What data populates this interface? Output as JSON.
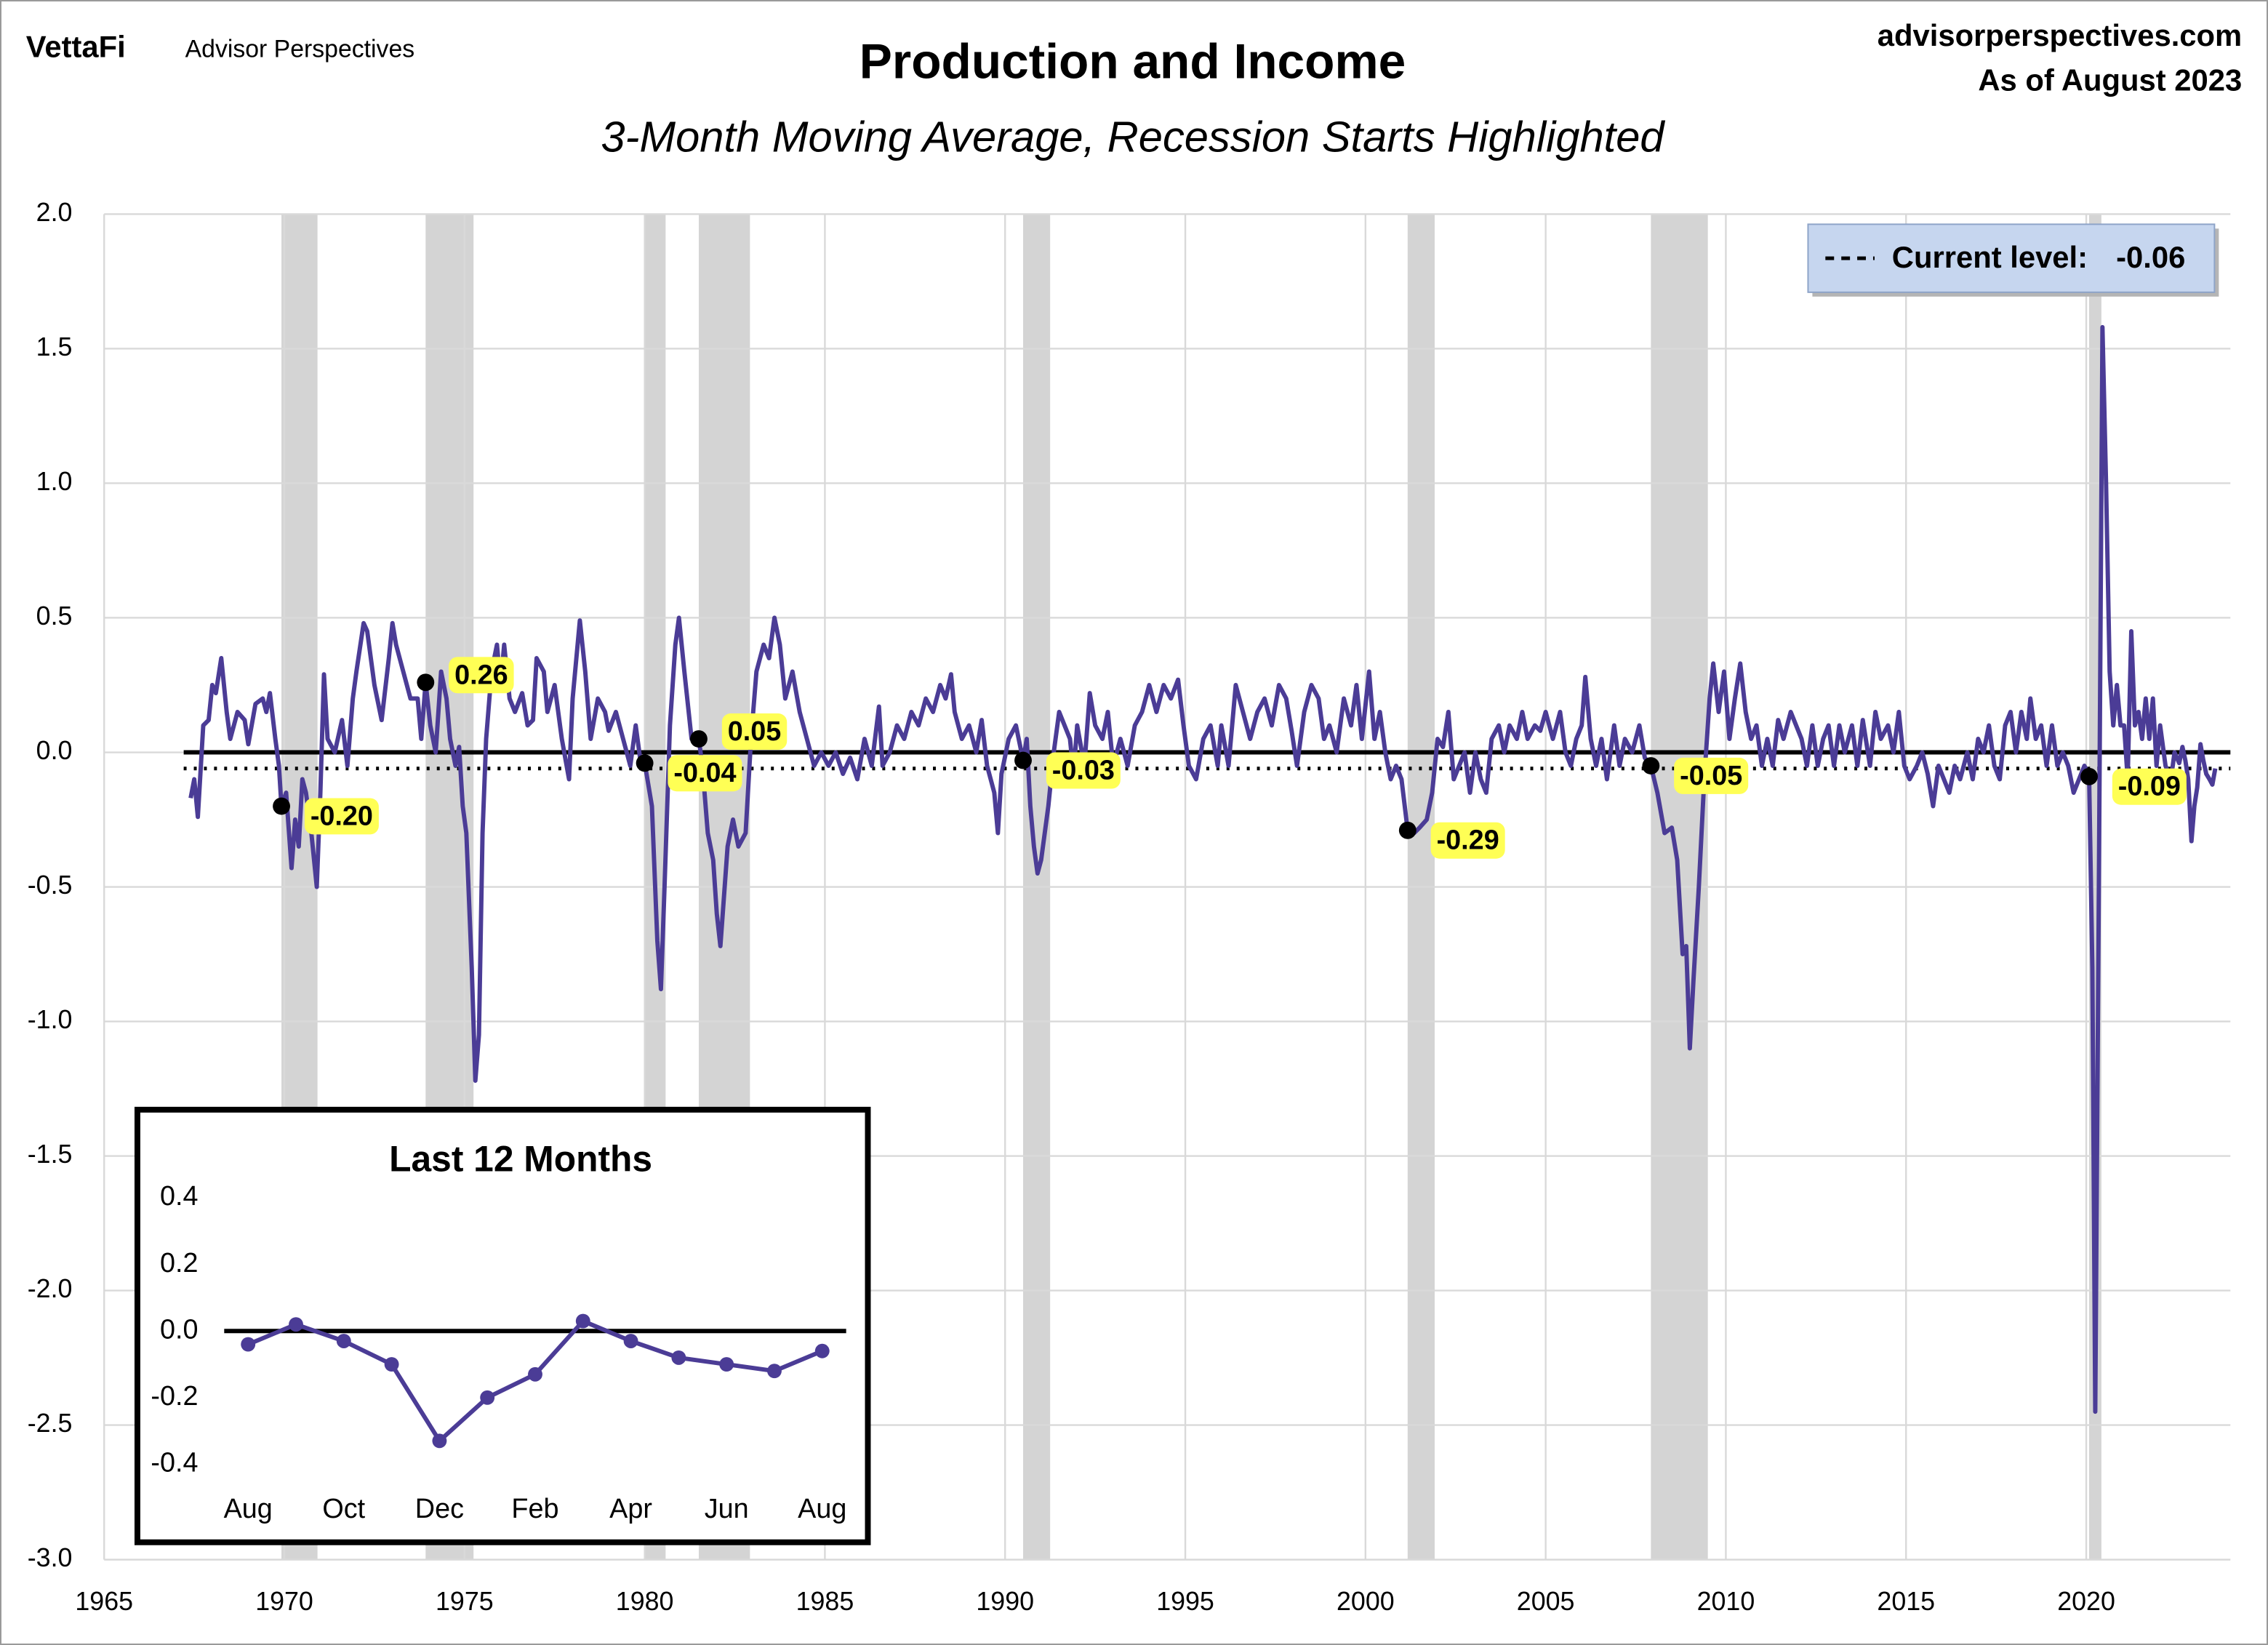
{
  "header": {
    "logo": "VettaFi",
    "brand": "Advisor Perspectives",
    "site": "advisorperspectives.com",
    "date": "As of August 2023"
  },
  "chart_data": [
    {
      "type": "line",
      "title": "Production and Income",
      "subtitle": "3-Month Moving Average, Recession Starts Highlighted",
      "color": "#4b3c96",
      "grid": true,
      "zero_line": true,
      "negative_tick_color": "#ff0000",
      "xlim": [
        1965,
        2024
      ],
      "xticks": [
        1965,
        1970,
        1975,
        1980,
        1985,
        1990,
        1995,
        2000,
        2005,
        2010,
        2015,
        2020
      ],
      "ylim": [
        -3,
        2
      ],
      "yticks": [
        {
          "value": -3,
          "label": "-3.0"
        },
        -2.5,
        {
          "value": -2,
          "label": "-2.0"
        },
        -1.5,
        {
          "value": -1,
          "label": "-1.0"
        },
        -0.5,
        {
          "value": 0,
          "label": "0.0"
        },
        0.5,
        {
          "value": 1,
          "label": "1.0"
        },
        1.5,
        {
          "value": 2,
          "label": "2.0"
        }
      ],
      "recession_color": "#d4d4d4",
      "recessions": [
        [
          1969.92,
          1970.92
        ],
        [
          1973.92,
          1975.25
        ],
        [
          1980.0,
          1980.58
        ],
        [
          1981.5,
          1982.92
        ],
        [
          1990.5,
          1991.25
        ],
        [
          2001.17,
          2001.92
        ],
        [
          2007.92,
          2009.5
        ],
        [
          2020.08,
          2020.42
        ]
      ],
      "current_level": {
        "label": "Current level:",
        "value": -0.06,
        "legend_position": "upper right"
      },
      "markers": {
        "x": [
          1969.92,
          1973.92,
          1980.0,
          1981.5,
          1990.5,
          2001.17,
          2007.92,
          2020.08
        ],
        "values": [
          -0.2,
          0.26,
          -0.04,
          0.05,
          -0.03,
          -0.29,
          -0.05,
          -0.09
        ],
        "value_labels": [
          "-0.20",
          "0.26",
          "-0.04",
          "0.05",
          "-0.03",
          "-0.29",
          "-0.05",
          "-0.09"
        ],
        "label_background": "#ffff55"
      },
      "x": [
        1967.4,
        1967.5,
        1967.6,
        1967.75,
        1967.9,
        1968.0,
        1968.1,
        1968.25,
        1968.4,
        1968.5,
        1968.7,
        1968.9,
        1969.0,
        1969.2,
        1969.4,
        1969.5,
        1969.6,
        1969.75,
        1969.85,
        1969.92,
        1970.05,
        1970.2,
        1970.3,
        1970.4,
        1970.5,
        1970.6,
        1970.75,
        1970.9,
        1971.0,
        1971.1,
        1971.2,
        1971.4,
        1971.6,
        1971.75,
        1971.9,
        1972.0,
        1972.2,
        1972.3,
        1972.5,
        1972.7,
        1972.9,
        1973.0,
        1973.1,
        1973.3,
        1973.5,
        1973.7,
        1973.8,
        1973.92,
        1974.05,
        1974.2,
        1974.35,
        1974.5,
        1974.6,
        1974.75,
        1974.85,
        1974.95,
        1975.05,
        1975.2,
        1975.3,
        1975.4,
        1975.5,
        1975.6,
        1975.75,
        1975.9,
        1976.0,
        1976.1,
        1976.25,
        1976.4,
        1976.6,
        1976.75,
        1976.9,
        1977.0,
        1977.2,
        1977.3,
        1977.5,
        1977.7,
        1977.9,
        1978.0,
        1978.2,
        1978.35,
        1978.5,
        1978.7,
        1978.9,
        1979.0,
        1979.2,
        1979.4,
        1979.6,
        1979.75,
        1979.9,
        1980.0,
        1980.2,
        1980.35,
        1980.45,
        1980.55,
        1980.7,
        1980.85,
        1980.95,
        1981.1,
        1981.3,
        1981.5,
        1981.6,
        1981.75,
        1981.9,
        1982.0,
        1982.1,
        1982.3,
        1982.45,
        1982.6,
        1982.8,
        1982.95,
        1983.1,
        1983.3,
        1983.45,
        1983.6,
        1983.75,
        1983.9,
        1984.1,
        1984.3,
        1984.5,
        1984.7,
        1984.9,
        1985.1,
        1985.3,
        1985.5,
        1985.7,
        1985.9,
        1986.1,
        1986.3,
        1986.5,
        1986.6,
        1986.8,
        1987.0,
        1987.2,
        1987.4,
        1987.6,
        1987.8,
        1988.0,
        1988.2,
        1988.35,
        1988.5,
        1988.6,
        1988.8,
        1989.0,
        1989.2,
        1989.35,
        1989.5,
        1989.7,
        1989.8,
        1989.9,
        1990.1,
        1990.3,
        1990.5,
        1990.6,
        1990.7,
        1990.8,
        1990.9,
        1991.0,
        1991.2,
        1991.35,
        1991.5,
        1991.65,
        1991.8,
        1991.9,
        1992.0,
        1992.2,
        1992.35,
        1992.5,
        1992.7,
        1992.85,
        1993.0,
        1993.2,
        1993.4,
        1993.6,
        1993.8,
        1994.0,
        1994.2,
        1994.4,
        1994.6,
        1994.8,
        1994.95,
        1995.1,
        1995.3,
        1995.5,
        1995.7,
        1995.9,
        1996.0,
        1996.2,
        1996.4,
        1996.6,
        1996.8,
        1997.0,
        1997.2,
        1997.4,
        1997.6,
        1997.8,
        1997.95,
        1998.1,
        1998.3,
        1998.5,
        1998.7,
        1998.85,
        1999.0,
        1999.2,
        1999.4,
        1999.6,
        1999.75,
        1999.9,
        2000.1,
        2000.25,
        2000.4,
        2000.55,
        2000.7,
        2000.85,
        2001.0,
        2001.17,
        2001.35,
        2001.5,
        2001.7,
        2001.85,
        2002.0,
        2002.15,
        2002.3,
        2002.45,
        2002.6,
        2002.75,
        2002.9,
        2003.05,
        2003.2,
        2003.35,
        2003.5,
        2003.7,
        2003.85,
        2004.0,
        2004.2,
        2004.35,
        2004.5,
        2004.7,
        2004.85,
        2005.0,
        2005.2,
        2005.4,
        2005.55,
        2005.7,
        2005.85,
        2006.0,
        2006.1,
        2006.25,
        2006.4,
        2006.55,
        2006.7,
        2006.9,
        2007.05,
        2007.2,
        2007.4,
        2007.6,
        2007.75,
        2007.92,
        2008.1,
        2008.3,
        2008.5,
        2008.65,
        2008.8,
        2008.9,
        2009.0,
        2009.1,
        2009.25,
        2009.4,
        2009.55,
        2009.65,
        2009.8,
        2009.95,
        2010.1,
        2010.25,
        2010.4,
        2010.55,
        2010.7,
        2010.85,
        2011.0,
        2011.15,
        2011.3,
        2011.45,
        2011.6,
        2011.8,
        2011.95,
        2012.1,
        2012.25,
        2012.4,
        2012.55,
        2012.7,
        2012.85,
        2013.0,
        2013.15,
        2013.3,
        2013.5,
        2013.65,
        2013.8,
        2014.0,
        2014.15,
        2014.3,
        2014.5,
        2014.65,
        2014.8,
        2014.95,
        2015.1,
        2015.3,
        2015.45,
        2015.6,
        2015.75,
        2015.9,
        2016.05,
        2016.2,
        2016.35,
        2016.5,
        2016.7,
        2016.85,
        2017.0,
        2017.15,
        2017.3,
        2017.45,
        2017.6,
        2017.75,
        2017.9,
        2018.05,
        2018.2,
        2018.35,
        2018.45,
        2018.6,
        2018.75,
        2018.9,
        2019.05,
        2019.2,
        2019.35,
        2019.5,
        2019.65,
        2019.8,
        2019.95,
        2020.08,
        2020.17,
        2020.25,
        2020.35,
        2020.45,
        2020.55,
        2020.65,
        2020.75,
        2020.85,
        2020.95,
        2021.05,
        2021.15,
        2021.25,
        2021.35,
        2021.45,
        2021.55,
        2021.65,
        2021.75,
        2021.85,
        2021.95,
        2022.05,
        2022.2,
        2022.35,
        2022.45,
        2022.58,
        2022.67,
        2022.75,
        2022.83,
        2022.92,
        2023.0,
        2023.08,
        2023.17,
        2023.25,
        2023.33,
        2023.42,
        2023.5,
        2023.58
      ],
      "values": [
        -0.17,
        -0.1,
        -0.24,
        0.1,
        0.12,
        0.25,
        0.22,
        0.35,
        0.15,
        0.05,
        0.15,
        0.12,
        0.03,
        0.18,
        0.2,
        0.15,
        0.22,
        0.05,
        -0.05,
        -0.2,
        -0.15,
        -0.43,
        -0.25,
        -0.35,
        -0.1,
        -0.15,
        -0.3,
        -0.5,
        -0.15,
        0.29,
        0.05,
        0,
        0.12,
        -0.05,
        0.2,
        0.3,
        0.48,
        0.45,
        0.25,
        0.12,
        0.35,
        0.48,
        0.4,
        0.3,
        0.2,
        0.2,
        0.05,
        0.26,
        0.1,
        0,
        0.3,
        0.2,
        0.05,
        -0.05,
        0.02,
        -0.2,
        -0.3,
        -0.8,
        -1.22,
        -1.05,
        -0.3,
        0.05,
        0.3,
        0.4,
        0.25,
        0.4,
        0.2,
        0.15,
        0.22,
        0.1,
        0.12,
        0.35,
        0.3,
        0.15,
        0.25,
        0.05,
        -0.1,
        0.2,
        0.49,
        0.3,
        0.05,
        0.2,
        0.15,
        0.08,
        0.15,
        0.05,
        -0.05,
        0.1,
        -0.05,
        -0.04,
        -0.2,
        -0.7,
        -0.88,
        -0.5,
        0.1,
        0.4,
        0.5,
        0.3,
        0.05,
        0.05,
        -0.05,
        -0.3,
        -0.4,
        -0.6,
        -0.72,
        -0.35,
        -0.25,
        -0.35,
        -0.3,
        0.05,
        0.3,
        0.4,
        0.35,
        0.5,
        0.4,
        0.2,
        0.3,
        0.15,
        0.05,
        -0.05,
        0,
        -0.05,
        0,
        -0.08,
        -0.02,
        -0.1,
        0.05,
        -0.05,
        0.17,
        -0.05,
        0,
        0.1,
        0.05,
        0.15,
        0.1,
        0.2,
        0.15,
        0.25,
        0.2,
        0.29,
        0.15,
        0.05,
        0.1,
        0,
        0.12,
        -0.05,
        -0.15,
        -0.3,
        -0.08,
        0.05,
        0.1,
        -0.03,
        0.05,
        -0.2,
        -0.35,
        -0.45,
        -0.4,
        -0.2,
        0,
        0.15,
        0.1,
        0.05,
        -0.08,
        0.1,
        -0.05,
        0.22,
        0.1,
        0.05,
        0.15,
        -0.05,
        0.05,
        -0.05,
        0.1,
        0.15,
        0.25,
        0.15,
        0.25,
        0.2,
        0.27,
        0.1,
        -0.05,
        -0.1,
        0.05,
        0.1,
        -0.05,
        0.1,
        -0.05,
        0.25,
        0.15,
        0.05,
        0.15,
        0.2,
        0.1,
        0.25,
        0.2,
        0.08,
        -0.05,
        0.15,
        0.25,
        0.2,
        0.05,
        0.1,
        0,
        0.2,
        0.1,
        0.25,
        0.05,
        0.3,
        0.05,
        0.15,
        0,
        -0.1,
        -0.05,
        -0.1,
        -0.29,
        -0.3,
        -0.28,
        -0.25,
        -0.15,
        0.05,
        0.02,
        0.15,
        -0.1,
        -0.05,
        0,
        -0.15,
        0,
        -0.1,
        -0.15,
        0.05,
        0.1,
        0,
        0.1,
        0.05,
        0.15,
        0.05,
        0.1,
        0.08,
        0.15,
        0.05,
        0.15,
        0,
        -0.05,
        0.05,
        0.1,
        0.28,
        0.05,
        -0.05,
        0.05,
        -0.1,
        0.1,
        -0.05,
        0.05,
        0,
        0.1,
        -0.02,
        -0.05,
        -0.15,
        -0.3,
        -0.28,
        -0.4,
        -0.75,
        -0.72,
        -1.1,
        -0.85,
        -0.5,
        -0.1,
        0.2,
        0.33,
        0.15,
        0.3,
        0.05,
        0.2,
        0.33,
        0.15,
        0.05,
        0.1,
        -0.05,
        0.05,
        -0.05,
        0.12,
        0.05,
        0.15,
        0.1,
        0.05,
        -0.05,
        0.1,
        -0.05,
        0.05,
        0.1,
        -0.05,
        0.1,
        0,
        0.1,
        -0.05,
        0.12,
        -0.05,
        0.15,
        0.05,
        0.1,
        0,
        0.15,
        -0.05,
        -0.1,
        -0.05,
        0,
        -0.08,
        -0.2,
        -0.05,
        -0.1,
        -0.15,
        -0.05,
        -0.1,
        0,
        -0.1,
        0.05,
        0,
        0.1,
        -0.05,
        -0.1,
        0.1,
        0.15,
        0,
        0.15,
        0.05,
        0.2,
        0.05,
        0.1,
        -0.05,
        0.1,
        -0.05,
        0,
        -0.05,
        -0.15,
        -0.1,
        -0.05,
        -0.09,
        -0.8,
        -2.45,
        -0.5,
        1.58,
        1.0,
        0.3,
        0.1,
        0.25,
        0.1,
        0.1,
        -0.1,
        0.45,
        0.1,
        0.15,
        0.05,
        0.2,
        0.05,
        0.2,
        -0.05,
        0.1,
        -0.05,
        -0.1,
        0,
        -0.04,
        0.02,
        -0.03,
        -0.1,
        -0.33,
        -0.2,
        -0.13,
        0.03,
        -0.03,
        -0.08,
        -0.1,
        -0.12,
        -0.06
      ]
    },
    {
      "type": "line",
      "title": "Last 12 Months",
      "color": "#4b3c96",
      "zero_line": true,
      "negative_tick_color": "#ff0000",
      "categories": [
        "Aug",
        null,
        "Oct",
        null,
        "Dec",
        null,
        "Feb",
        null,
        "Apr",
        null,
        "Jun",
        null,
        "Aug"
      ],
      "values": [
        -0.04,
        0.02,
        -0.03,
        -0.1,
        -0.33,
        -0.2,
        -0.13,
        0.03,
        -0.03,
        -0.08,
        -0.1,
        -0.12,
        -0.06
      ],
      "ylim": [
        -0.4,
        0.4
      ],
      "yticks": [
        {
          "value": -0.4,
          "label": "-0.4"
        },
        -0.2,
        {
          "value": 0,
          "label": "0.0"
        },
        0.2,
        0.4
      ]
    }
  ]
}
